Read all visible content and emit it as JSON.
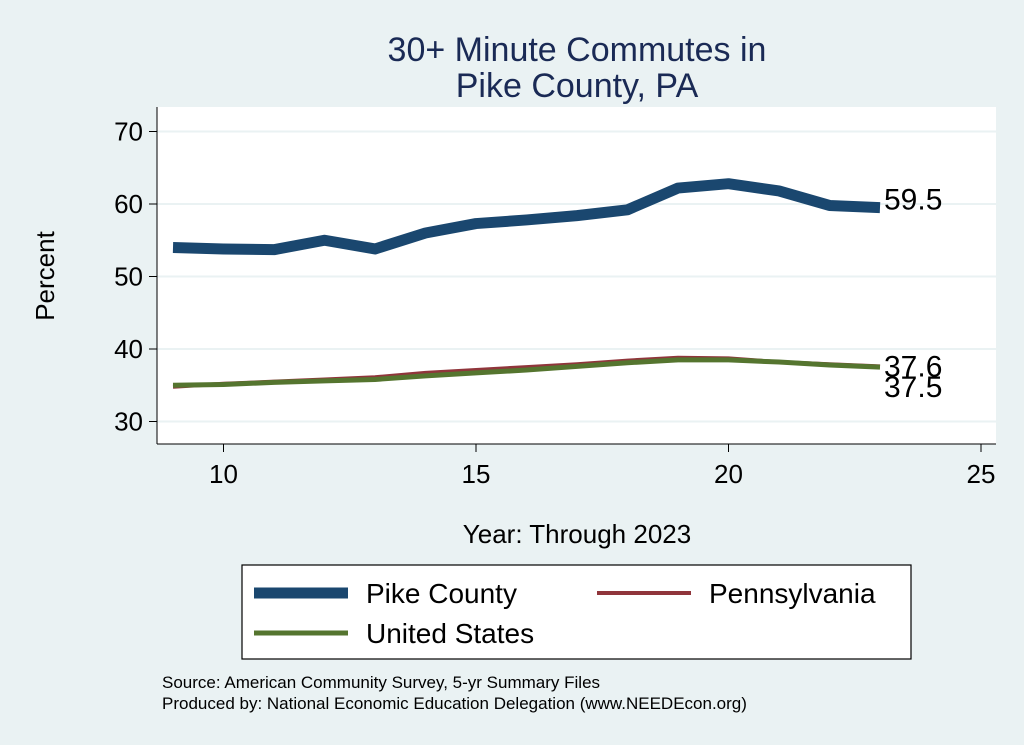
{
  "chart_data": {
    "type": "line",
    "title": [
      "30+ Minute Commutes in",
      "Pike County, PA"
    ],
    "xlabel": "Year: Through 2023",
    "ylabel": "Percent",
    "xlim": [
      9,
      25
    ],
    "ylim": [
      28,
      72
    ],
    "xticks": [
      "10",
      "15",
      "20",
      "25"
    ],
    "yticks": [
      "30",
      "40",
      "50",
      "60",
      "70"
    ],
    "grid": true,
    "legend_position": "bottom",
    "x": [
      9,
      10,
      11,
      12,
      13,
      14,
      15,
      16,
      17,
      18,
      19,
      20,
      21,
      22,
      23
    ],
    "series": [
      {
        "name": "Pike County",
        "color": "#1a476f",
        "values": [
          54.0,
          53.8,
          53.7,
          55.0,
          53.8,
          56.0,
          57.3,
          57.8,
          58.4,
          59.2,
          62.2,
          62.8,
          61.8,
          59.8,
          59.5
        ],
        "end_label": "59.5"
      },
      {
        "name": "Pennsylvania",
        "color": "#90353b",
        "values": [
          34.8,
          35.2,
          35.5,
          35.8,
          36.1,
          36.7,
          37.1,
          37.5,
          37.9,
          38.4,
          38.8,
          38.7,
          38.2,
          37.9,
          37.6
        ],
        "end_label": "37.6"
      },
      {
        "name": "United States",
        "color": "#55752f",
        "values": [
          35.0,
          35.1,
          35.4,
          35.6,
          35.8,
          36.3,
          36.7,
          37.1,
          37.6,
          38.1,
          38.5,
          38.5,
          38.2,
          37.8,
          37.5
        ],
        "end_label": "37.5"
      }
    ]
  },
  "notes": {
    "source": "Source: American Community Survey, 5-yr Summary Files",
    "produced_by": "Produced by: National Economic Education Delegation (www.NEEDEcon.org)"
  }
}
